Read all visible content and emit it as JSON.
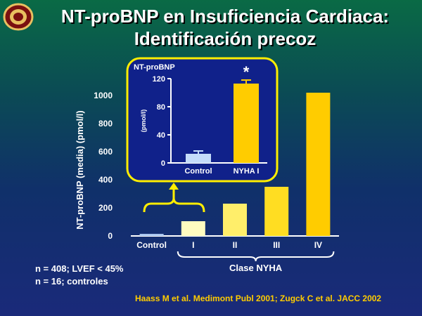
{
  "slide": {
    "title_line1": "NT-proBNP en Insuficiencia Cardiaca:",
    "title_line2": "Identificación precoz",
    "note1": "n = 408; LVEF < 45%",
    "note2": "n = 16; controles",
    "reference": "Haass M et al. Medimont Publ 2001; Zugck C et al. JACC 2002"
  },
  "chart_data": [
    {
      "type": "bar",
      "ylabel": "NT-proBNP (media) (pmol/l)",
      "xlabel": "Clase NYHA",
      "categories": [
        "Control",
        "I",
        "II",
        "III",
        "IV"
      ],
      "values": [
        15,
        105,
        230,
        350,
        1020
      ],
      "yticks": [
        0,
        200,
        400,
        600,
        800,
        1000
      ],
      "ylim": [
        0,
        1000
      ],
      "colors": [
        "#a9c6ee",
        "#fffcc0",
        "#ffee6a",
        "#ffdd22",
        "#ffcc00"
      ],
      "grid": false
    },
    {
      "type": "bar",
      "title": "NT-proBNP",
      "ylabel": "(pmol/l)",
      "categories": [
        "Control",
        "NYHA I"
      ],
      "values": [
        13,
        113
      ],
      "errors": [
        4,
        5
      ],
      "annotation": "*",
      "yticks": [
        0,
        40,
        80,
        120
      ],
      "ylim": [
        0,
        120
      ],
      "colors": [
        "#c4dcfa",
        "#ffcc00"
      ],
      "grid": false
    }
  ]
}
